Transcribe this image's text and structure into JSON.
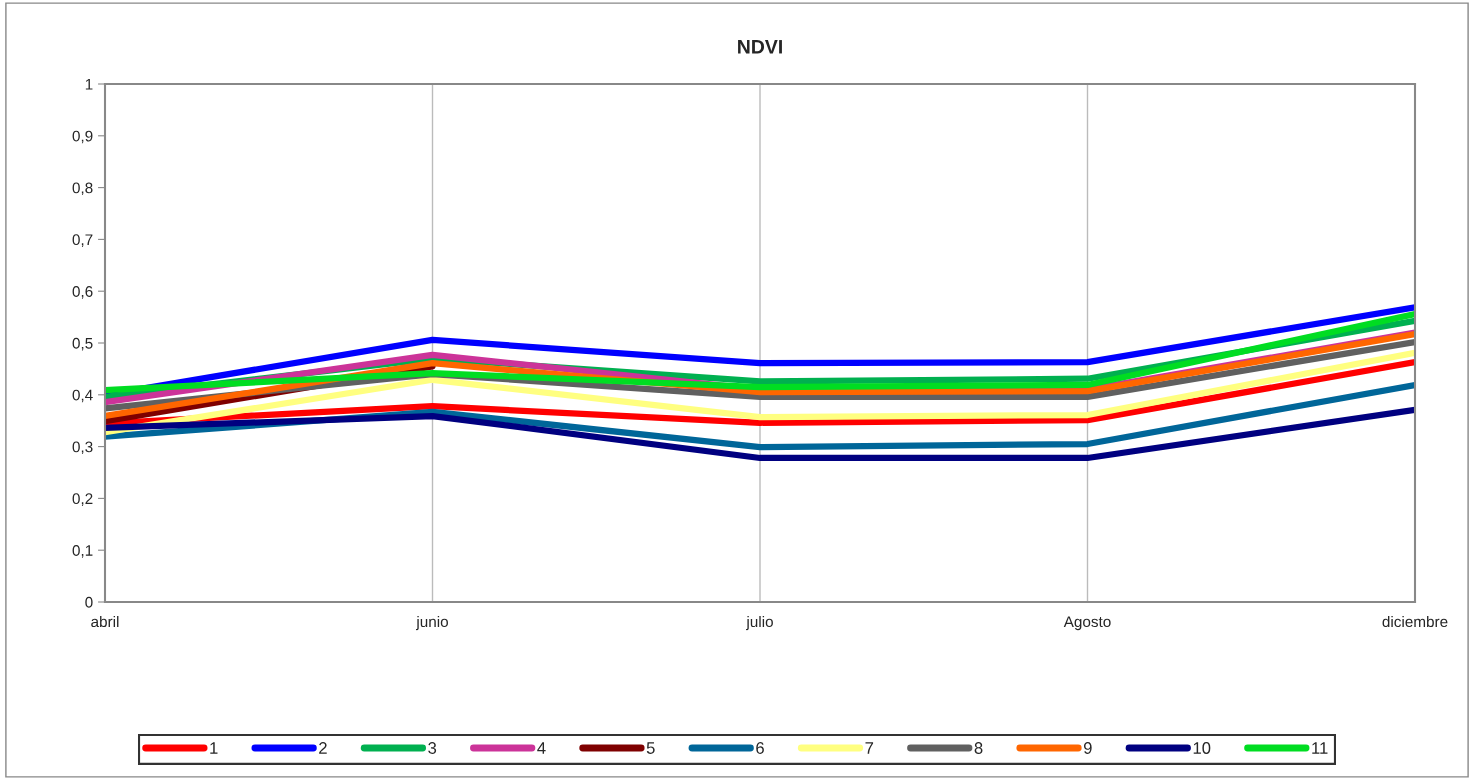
{
  "chart_data": {
    "type": "line",
    "title": "NDVI",
    "categories": [
      "abril",
      "junio",
      "julio",
      "Agosto",
      "diciembre"
    ],
    "ylim": [
      0,
      1
    ],
    "yticks": [
      0,
      {
        "value": 0.1,
        "label": "0,1"
      },
      {
        "value": 0.2,
        "label": "0,2"
      },
      {
        "value": 0.3,
        "label": "0,3"
      },
      {
        "value": 0.4,
        "label": "0,4"
      },
      {
        "value": 0.5,
        "label": "0,5"
      },
      {
        "value": 0.6,
        "label": "0,6"
      },
      {
        "value": 0.7,
        "label": "0,7"
      },
      {
        "value": 0.8,
        "label": "0,8"
      },
      {
        "value": 0.9,
        "label": "0,9"
      },
      1
    ],
    "grid": "x",
    "legend": "bottom",
    "marker": "none",
    "line_style": "solid",
    "series": [
      {
        "name": "1",
        "color": "#ff0000",
        "values": [
          0.345,
          0.378,
          0.346,
          0.351,
          0.463
        ]
      },
      {
        "name": "2",
        "color": "#0000ff",
        "values": [
          0.4,
          0.506,
          0.461,
          0.463,
          0.569
        ]
      },
      {
        "name": "3",
        "color": "#00b050",
        "values": [
          0.396,
          0.47,
          0.426,
          0.431,
          0.543
        ]
      },
      {
        "name": "4",
        "color": "#cc3399",
        "values": [
          0.386,
          0.477,
          0.41,
          0.41,
          0.52
        ]
      },
      {
        "name": "5",
        "color": "#7f0000",
        "values": [
          0.349,
          0.455,
          null,
          null,
          null
        ]
      },
      {
        "name": "6",
        "color": "#006699",
        "values": [
          0.319,
          0.367,
          0.299,
          0.305,
          0.419
        ]
      },
      {
        "name": "7",
        "color": "#ffff80",
        "values": [
          0.328,
          0.429,
          0.357,
          0.361,
          0.481
        ]
      },
      {
        "name": "8",
        "color": "#606060",
        "values": [
          0.374,
          0.44,
          0.396,
          0.396,
          0.502
        ]
      },
      {
        "name": "9",
        "color": "#ff6600",
        "values": [
          0.359,
          0.461,
          0.405,
          0.407,
          0.517
        ]
      },
      {
        "name": "10",
        "color": "#000080",
        "values": [
          0.336,
          0.359,
          0.278,
          0.278,
          0.371
        ]
      },
      {
        "name": "11",
        "color": "#00dd22",
        "values": [
          0.409,
          0.442,
          0.415,
          0.419,
          0.556
        ]
      }
    ]
  }
}
